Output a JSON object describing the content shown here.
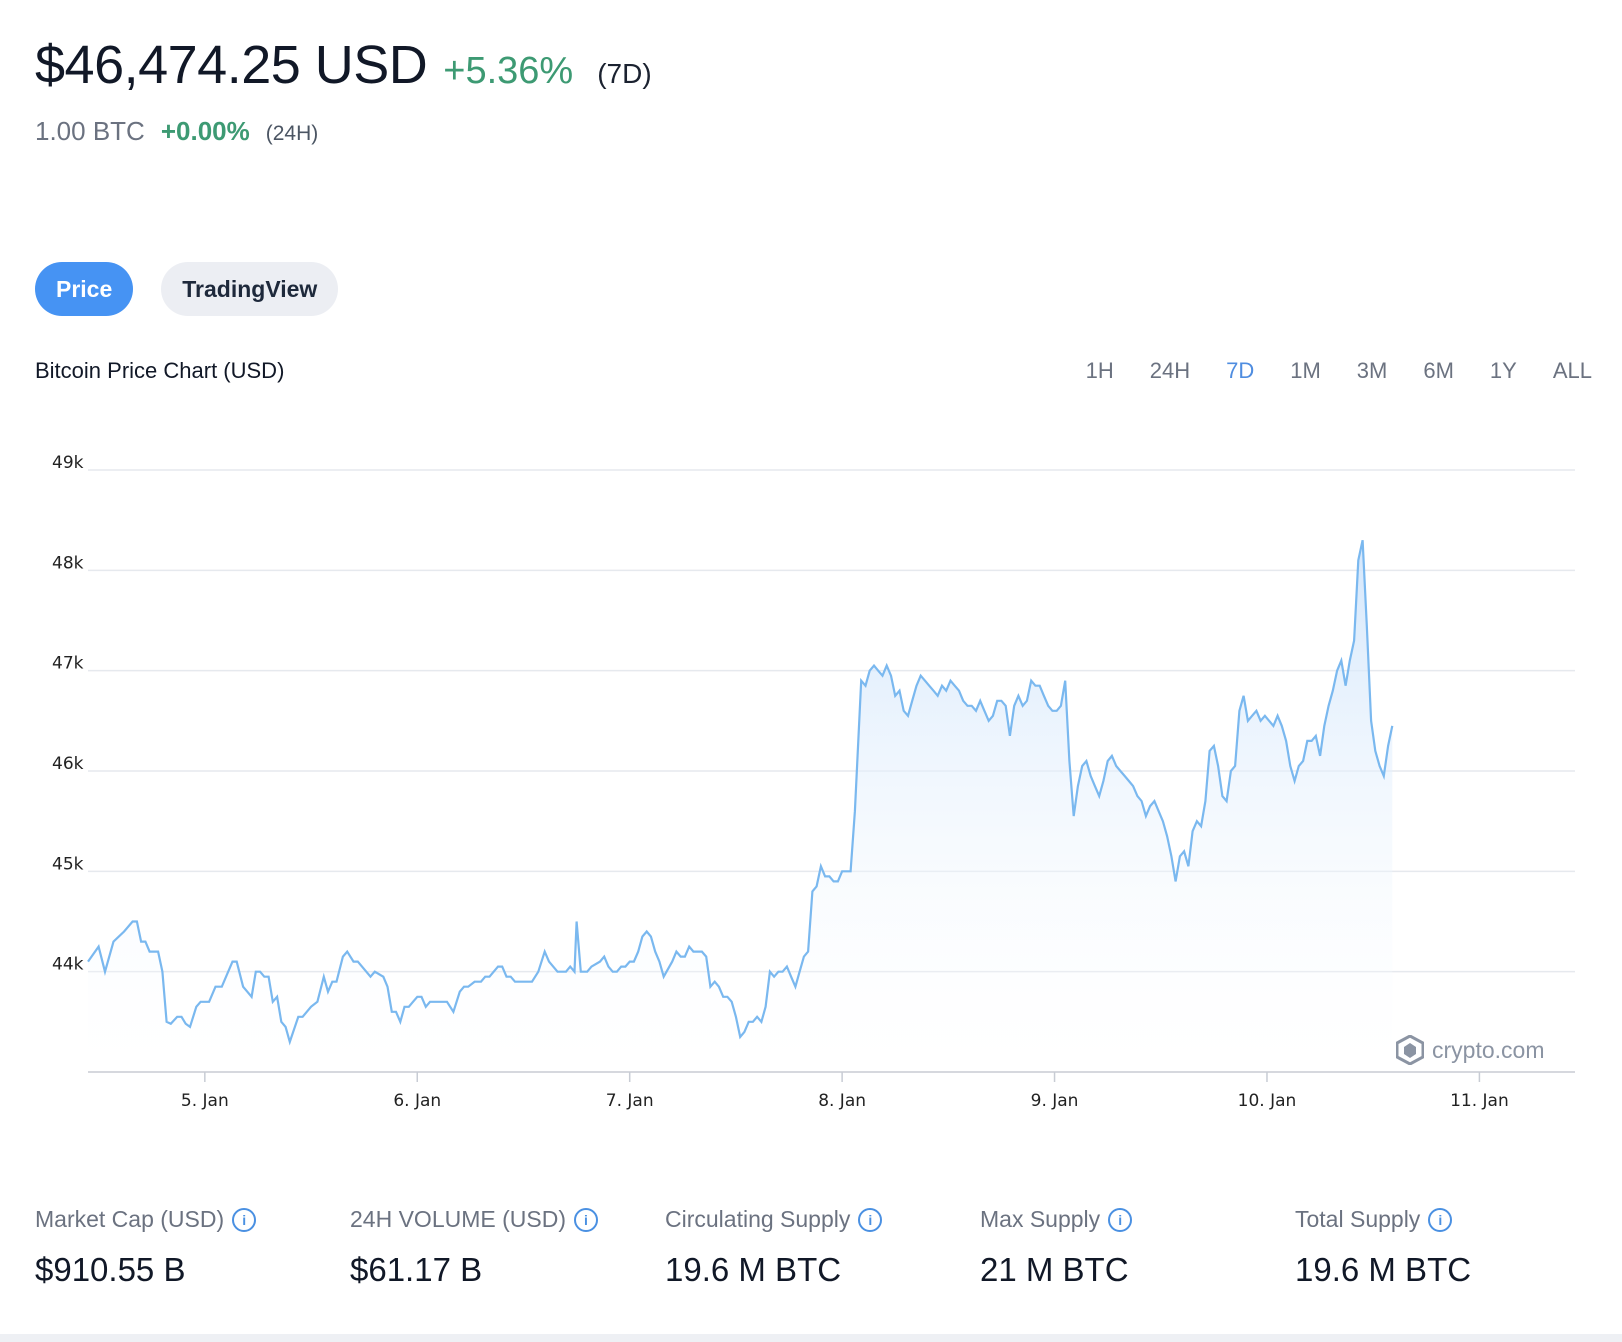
{
  "header": {
    "price": "$46,474.25 USD",
    "change": "+5.36%",
    "period": "(7D)",
    "btc_amount": "1.00 BTC",
    "btc_change": "+0.00%",
    "btc_period": "(24H)"
  },
  "tabs": [
    {
      "label": "Price",
      "active": true
    },
    {
      "label": "TradingView",
      "active": false
    }
  ],
  "chart_header": {
    "title": "Bitcoin Price Chart (USD)",
    "ranges": [
      "1H",
      "24H",
      "7D",
      "1M",
      "3M",
      "6M",
      "1Y",
      "ALL"
    ],
    "active_range": "7D"
  },
  "watermark": "crypto.com",
  "colors": {
    "line": "#7ab8ef",
    "accent": "#4693f3",
    "positive": "#3d9a73"
  },
  "chart_data": {
    "type": "area",
    "title": "Bitcoin Price Chart (USD)",
    "xlabel": "",
    "ylabel": "",
    "x_ticks": [
      {
        "label": "5. Jan",
        "t": 1.0
      },
      {
        "label": "6. Jan",
        "t": 2.0
      },
      {
        "label": "7. Jan",
        "t": 3.0
      },
      {
        "label": "8. Jan",
        "t": 4.0
      },
      {
        "label": "9. Jan",
        "t": 5.0
      },
      {
        "label": "10. Jan",
        "t": 6.0
      },
      {
        "label": "11. Jan",
        "t": 7.0
      }
    ],
    "y_ticks": [
      {
        "label": "44k",
        "value": 44000
      },
      {
        "label": "45k",
        "value": 45000
      },
      {
        "label": "46k",
        "value": 46000
      },
      {
        "label": "47k",
        "value": 47000
      },
      {
        "label": "48k",
        "value": 48000
      },
      {
        "label": "49k",
        "value": 49000
      }
    ],
    "xlim": [
      0.45,
      7.45
    ],
    "ylim": [
      43000,
      49000
    ],
    "grid": true,
    "series": [
      {
        "points": [
          [
            0.45,
            44100
          ],
          [
            0.5,
            44250
          ],
          [
            0.53,
            44000
          ],
          [
            0.57,
            44300
          ],
          [
            0.62,
            44400
          ],
          [
            0.66,
            44500
          ],
          [
            0.68,
            44500
          ],
          [
            0.7,
            44300
          ],
          [
            0.72,
            44300
          ],
          [
            0.74,
            44200
          ],
          [
            0.78,
            44200
          ],
          [
            0.8,
            44000
          ],
          [
            0.82,
            43500
          ],
          [
            0.84,
            43480
          ],
          [
            0.87,
            43550
          ],
          [
            0.89,
            43550
          ],
          [
            0.91,
            43480
          ],
          [
            0.93,
            43450
          ],
          [
            0.96,
            43650
          ],
          [
            0.98,
            43700
          ],
          [
            1.02,
            43700
          ],
          [
            1.05,
            43850
          ],
          [
            1.08,
            43850
          ],
          [
            1.13,
            44100
          ],
          [
            1.15,
            44100
          ],
          [
            1.18,
            43850
          ],
          [
            1.2,
            43800
          ],
          [
            1.22,
            43750
          ],
          [
            1.24,
            44000
          ],
          [
            1.26,
            44000
          ],
          [
            1.28,
            43950
          ],
          [
            1.3,
            43950
          ],
          [
            1.32,
            43700
          ],
          [
            1.34,
            43750
          ],
          [
            1.36,
            43500
          ],
          [
            1.38,
            43450
          ],
          [
            1.4,
            43300
          ],
          [
            1.44,
            43550
          ],
          [
            1.46,
            43550
          ],
          [
            1.48,
            43600
          ],
          [
            1.5,
            43650
          ],
          [
            1.53,
            43700
          ],
          [
            1.56,
            43950
          ],
          [
            1.58,
            43800
          ],
          [
            1.6,
            43900
          ],
          [
            1.62,
            43900
          ],
          [
            1.65,
            44150
          ],
          [
            1.67,
            44200
          ],
          [
            1.7,
            44100
          ],
          [
            1.72,
            44100
          ],
          [
            1.76,
            44000
          ],
          [
            1.78,
            43950
          ],
          [
            1.8,
            44000
          ],
          [
            1.84,
            43950
          ],
          [
            1.86,
            43850
          ],
          [
            1.88,
            43600
          ],
          [
            1.9,
            43600
          ],
          [
            1.92,
            43500
          ],
          [
            1.94,
            43650
          ],
          [
            1.96,
            43650
          ],
          [
            1.98,
            43700
          ],
          [
            2.0,
            43750
          ],
          [
            2.02,
            43750
          ],
          [
            2.04,
            43650
          ],
          [
            2.06,
            43700
          ],
          [
            2.1,
            43700
          ],
          [
            2.14,
            43700
          ],
          [
            2.17,
            43600
          ],
          [
            2.2,
            43800
          ],
          [
            2.22,
            43850
          ],
          [
            2.24,
            43850
          ],
          [
            2.27,
            43900
          ],
          [
            2.3,
            43900
          ],
          [
            2.32,
            43950
          ],
          [
            2.34,
            43950
          ],
          [
            2.36,
            44000
          ],
          [
            2.38,
            44050
          ],
          [
            2.4,
            44050
          ],
          [
            2.42,
            43950
          ],
          [
            2.44,
            43950
          ],
          [
            2.46,
            43900
          ],
          [
            2.48,
            43900
          ],
          [
            2.5,
            43900
          ],
          [
            2.54,
            43900
          ],
          [
            2.57,
            44000
          ],
          [
            2.6,
            44200
          ],
          [
            2.62,
            44100
          ],
          [
            2.64,
            44050
          ],
          [
            2.66,
            44000
          ],
          [
            2.7,
            44000
          ],
          [
            2.72,
            44050
          ],
          [
            2.74,
            44000
          ],
          [
            2.75,
            44500
          ],
          [
            2.77,
            44000
          ],
          [
            2.8,
            44000
          ],
          [
            2.82,
            44050
          ],
          [
            2.86,
            44100
          ],
          [
            2.88,
            44150
          ],
          [
            2.9,
            44050
          ],
          [
            2.92,
            44000
          ],
          [
            2.94,
            44000
          ],
          [
            2.96,
            44050
          ],
          [
            2.98,
            44050
          ],
          [
            3.0,
            44100
          ],
          [
            3.02,
            44100
          ],
          [
            3.04,
            44200
          ],
          [
            3.06,
            44350
          ],
          [
            3.08,
            44400
          ],
          [
            3.1,
            44350
          ],
          [
            3.12,
            44200
          ],
          [
            3.14,
            44100
          ],
          [
            3.16,
            43950
          ],
          [
            3.2,
            44100
          ],
          [
            3.22,
            44200
          ],
          [
            3.24,
            44150
          ],
          [
            3.26,
            44150
          ],
          [
            3.28,
            44250
          ],
          [
            3.3,
            44200
          ],
          [
            3.32,
            44200
          ],
          [
            3.34,
            44200
          ],
          [
            3.36,
            44150
          ],
          [
            3.38,
            43850
          ],
          [
            3.4,
            43900
          ],
          [
            3.42,
            43850
          ],
          [
            3.44,
            43750
          ],
          [
            3.46,
            43750
          ],
          [
            3.48,
            43700
          ],
          [
            3.5,
            43550
          ],
          [
            3.52,
            43350
          ],
          [
            3.54,
            43400
          ],
          [
            3.56,
            43500
          ],
          [
            3.58,
            43500
          ],
          [
            3.6,
            43550
          ],
          [
            3.62,
            43500
          ],
          [
            3.64,
            43650
          ],
          [
            3.66,
            44000
          ],
          [
            3.68,
            43950
          ],
          [
            3.7,
            44000
          ],
          [
            3.72,
            44000
          ],
          [
            3.74,
            44050
          ],
          [
            3.76,
            43950
          ],
          [
            3.78,
            43850
          ],
          [
            3.8,
            44000
          ],
          [
            3.82,
            44150
          ],
          [
            3.84,
            44200
          ],
          [
            3.86,
            44800
          ],
          [
            3.88,
            44850
          ],
          [
            3.9,
            45050
          ],
          [
            3.92,
            44950
          ],
          [
            3.94,
            44950
          ],
          [
            3.96,
            44900
          ],
          [
            3.98,
            44900
          ],
          [
            4.0,
            45000
          ],
          [
            4.02,
            45000
          ],
          [
            4.04,
            45000
          ],
          [
            4.06,
            45600
          ],
          [
            4.09,
            46900
          ],
          [
            4.11,
            46850
          ],
          [
            4.13,
            47000
          ],
          [
            4.15,
            47050
          ],
          [
            4.17,
            47000
          ],
          [
            4.19,
            46950
          ],
          [
            4.21,
            47050
          ],
          [
            4.23,
            46950
          ],
          [
            4.25,
            46750
          ],
          [
            4.27,
            46800
          ],
          [
            4.29,
            46600
          ],
          [
            4.31,
            46550
          ],
          [
            4.33,
            46700
          ],
          [
            4.35,
            46850
          ],
          [
            4.37,
            46950
          ],
          [
            4.39,
            46900
          ],
          [
            4.41,
            46850
          ],
          [
            4.43,
            46800
          ],
          [
            4.45,
            46750
          ],
          [
            4.47,
            46850
          ],
          [
            4.49,
            46800
          ],
          [
            4.51,
            46900
          ],
          [
            4.53,
            46850
          ],
          [
            4.55,
            46800
          ],
          [
            4.57,
            46700
          ],
          [
            4.59,
            46650
          ],
          [
            4.61,
            46650
          ],
          [
            4.63,
            46600
          ],
          [
            4.65,
            46700
          ],
          [
            4.67,
            46600
          ],
          [
            4.69,
            46500
          ],
          [
            4.71,
            46550
          ],
          [
            4.73,
            46700
          ],
          [
            4.75,
            46700
          ],
          [
            4.77,
            46650
          ],
          [
            4.79,
            46350
          ],
          [
            4.81,
            46650
          ],
          [
            4.83,
            46750
          ],
          [
            4.85,
            46650
          ],
          [
            4.87,
            46700
          ],
          [
            4.89,
            46900
          ],
          [
            4.91,
            46850
          ],
          [
            4.93,
            46850
          ],
          [
            4.95,
            46750
          ],
          [
            4.97,
            46650
          ],
          [
            4.99,
            46600
          ],
          [
            5.01,
            46600
          ],
          [
            5.03,
            46650
          ],
          [
            5.05,
            46900
          ],
          [
            5.07,
            46100
          ],
          [
            5.09,
            45550
          ],
          [
            5.11,
            45850
          ],
          [
            5.13,
            46050
          ],
          [
            5.15,
            46100
          ],
          [
            5.17,
            45950
          ],
          [
            5.19,
            45850
          ],
          [
            5.21,
            45750
          ],
          [
            5.23,
            45900
          ],
          [
            5.25,
            46100
          ],
          [
            5.27,
            46150
          ],
          [
            5.29,
            46050
          ],
          [
            5.31,
            46000
          ],
          [
            5.33,
            45950
          ],
          [
            5.35,
            45900
          ],
          [
            5.37,
            45850
          ],
          [
            5.39,
            45750
          ],
          [
            5.41,
            45700
          ],
          [
            5.43,
            45550
          ],
          [
            5.45,
            45650
          ],
          [
            5.47,
            45700
          ],
          [
            5.49,
            45600
          ],
          [
            5.51,
            45500
          ],
          [
            5.53,
            45350
          ],
          [
            5.55,
            45150
          ],
          [
            5.57,
            44900
          ],
          [
            5.59,
            45150
          ],
          [
            5.61,
            45200
          ],
          [
            5.63,
            45050
          ],
          [
            5.65,
            45400
          ],
          [
            5.67,
            45500
          ],
          [
            5.69,
            45450
          ],
          [
            5.71,
            45700
          ],
          [
            5.73,
            46200
          ],
          [
            5.75,
            46250
          ],
          [
            5.77,
            46050
          ],
          [
            5.79,
            45750
          ],
          [
            5.81,
            45700
          ],
          [
            5.83,
            46000
          ],
          [
            5.85,
            46050
          ],
          [
            5.87,
            46600
          ],
          [
            5.89,
            46750
          ],
          [
            5.91,
            46500
          ],
          [
            5.93,
            46550
          ],
          [
            5.95,
            46600
          ],
          [
            5.97,
            46500
          ],
          [
            5.99,
            46550
          ],
          [
            6.01,
            46500
          ],
          [
            6.03,
            46450
          ],
          [
            6.05,
            46550
          ],
          [
            6.07,
            46450
          ],
          [
            6.09,
            46300
          ],
          [
            6.11,
            46050
          ],
          [
            6.13,
            45900
          ],
          [
            6.15,
            46050
          ],
          [
            6.17,
            46100
          ],
          [
            6.19,
            46300
          ],
          [
            6.21,
            46300
          ],
          [
            6.23,
            46350
          ],
          [
            6.25,
            46150
          ],
          [
            6.27,
            46450
          ],
          [
            6.29,
            46650
          ],
          [
            6.31,
            46800
          ],
          [
            6.33,
            47000
          ],
          [
            6.35,
            47100
          ],
          [
            6.37,
            46850
          ],
          [
            6.39,
            47100
          ],
          [
            6.41,
            47300
          ],
          [
            6.43,
            48100
          ],
          [
            6.45,
            48300
          ],
          [
            6.47,
            47450
          ],
          [
            6.49,
            46500
          ],
          [
            6.51,
            46200
          ],
          [
            6.53,
            46050
          ],
          [
            6.55,
            45950
          ],
          [
            6.57,
            46250
          ],
          [
            6.59,
            46450
          ]
        ]
      }
    ]
  },
  "stats": [
    {
      "label": "Market Cap (USD)",
      "value": "$910.55 B"
    },
    {
      "label": "24H VOLUME (USD)",
      "value": "$61.17 B"
    },
    {
      "label": "Circulating Supply",
      "value": "19.6 M BTC"
    },
    {
      "label": "Max Supply",
      "value": "21 M BTC"
    },
    {
      "label": "Total Supply",
      "value": "19.6 M BTC"
    }
  ]
}
